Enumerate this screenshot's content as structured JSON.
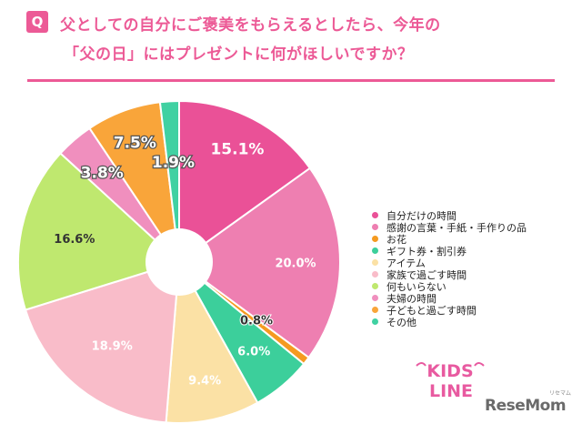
{
  "header": {
    "badge": "Q",
    "title_line1": "父としての自分にご褒美をもらえるとしたら、今年の",
    "title_line2": "「父の日」にはプレゼントに何がほしいですか？"
  },
  "chart_data": {
    "type": "pie",
    "categories": [
      "自分だけの時間",
      "感謝の言葉・手紙・手作りの品",
      "お花",
      "ギフト券・割引券",
      "アイテム",
      "家族で過ごす時間",
      "何もいらない",
      "夫婦の時間",
      "子どもと過ごす時間",
      "その他"
    ],
    "values": [
      15.1,
      20.0,
      0.8,
      6.0,
      9.4,
      18.9,
      16.6,
      3.8,
      7.5,
      1.9
    ],
    "labels": [
      "15.1%",
      "20.0%",
      "0.8%",
      "6.0%",
      "9.4%",
      "18.9%",
      "16.6%",
      "3.8%",
      "7.5%",
      "1.9%"
    ],
    "colors": [
      "#ea5197",
      "#ee7fb1",
      "#f59a20",
      "#3ccf9b",
      "#fbe1a5",
      "#f9bcc9",
      "#bfe86f",
      "#f08fbe",
      "#f9a53a",
      "#40d1a2"
    ],
    "legend_position": "right",
    "donut_hole": true
  },
  "branding": {
    "kids_line_1": "KIDS",
    "kids_line_2": "LINE",
    "resemom": "ReseMom",
    "resemom_ruby": "リセマム"
  }
}
